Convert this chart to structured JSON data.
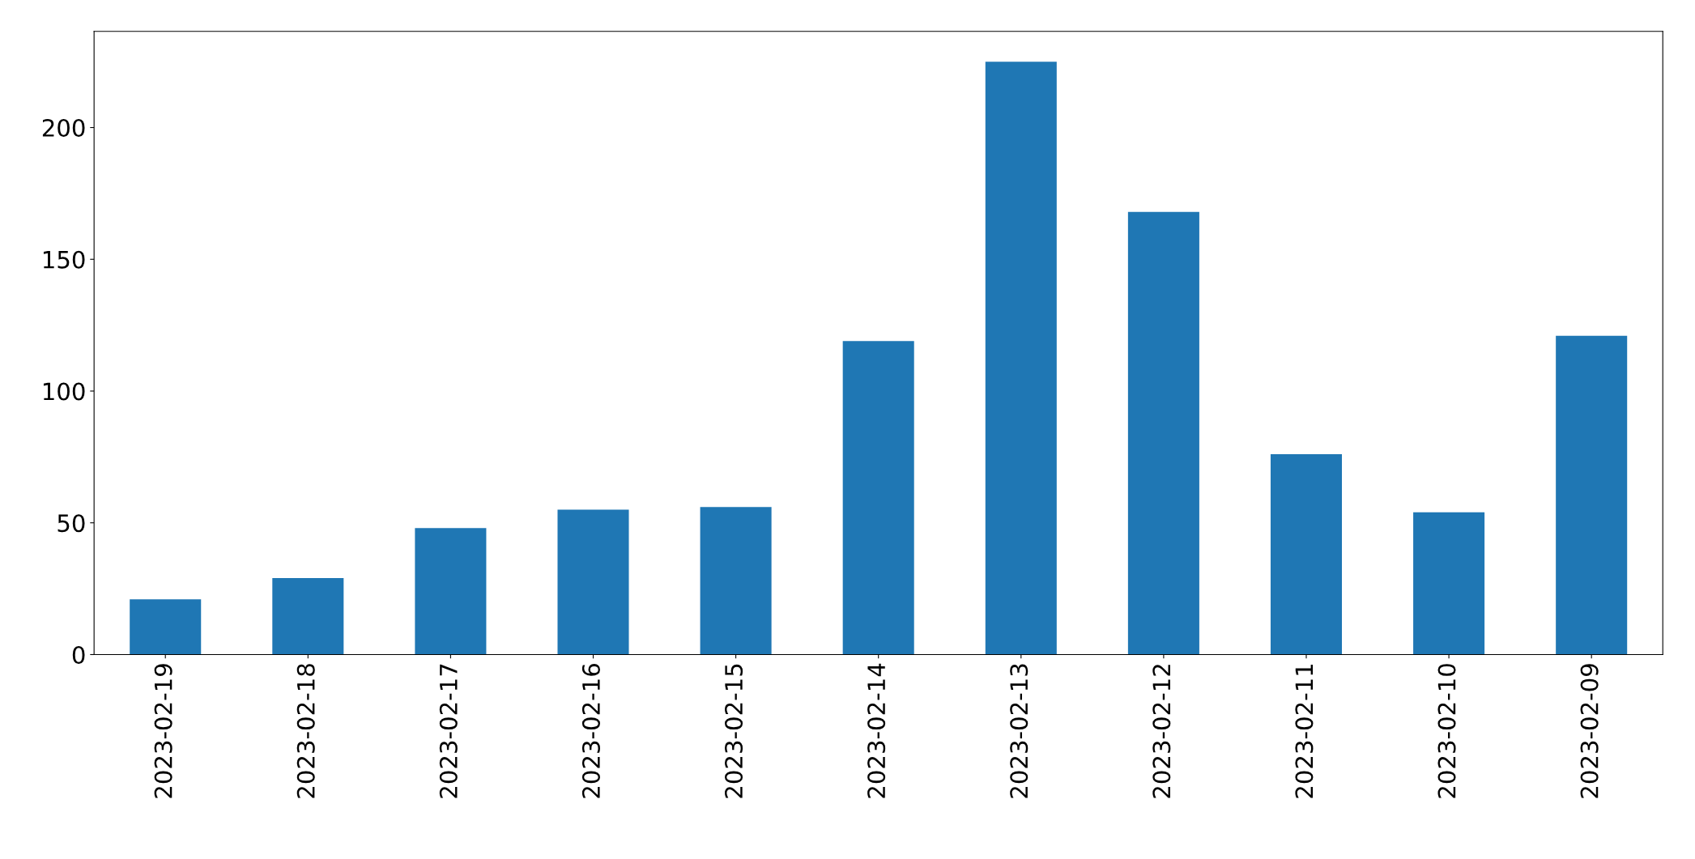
{
  "chart_data": {
    "type": "bar",
    "categories": [
      "2023-02-19",
      "2023-02-18",
      "2023-02-17",
      "2023-02-16",
      "2023-02-15",
      "2023-02-14",
      "2023-02-13",
      "2023-02-12",
      "2023-02-11",
      "2023-02-10",
      "2023-02-09"
    ],
    "values": [
      21,
      29,
      48,
      55,
      56,
      119,
      225,
      168,
      76,
      54,
      121
    ],
    "color": "#1f77b4",
    "ylim": [
      0,
      236.5
    ],
    "yticks": [
      0,
      50,
      100,
      150,
      200
    ],
    "grid": false,
    "legend": false
  }
}
